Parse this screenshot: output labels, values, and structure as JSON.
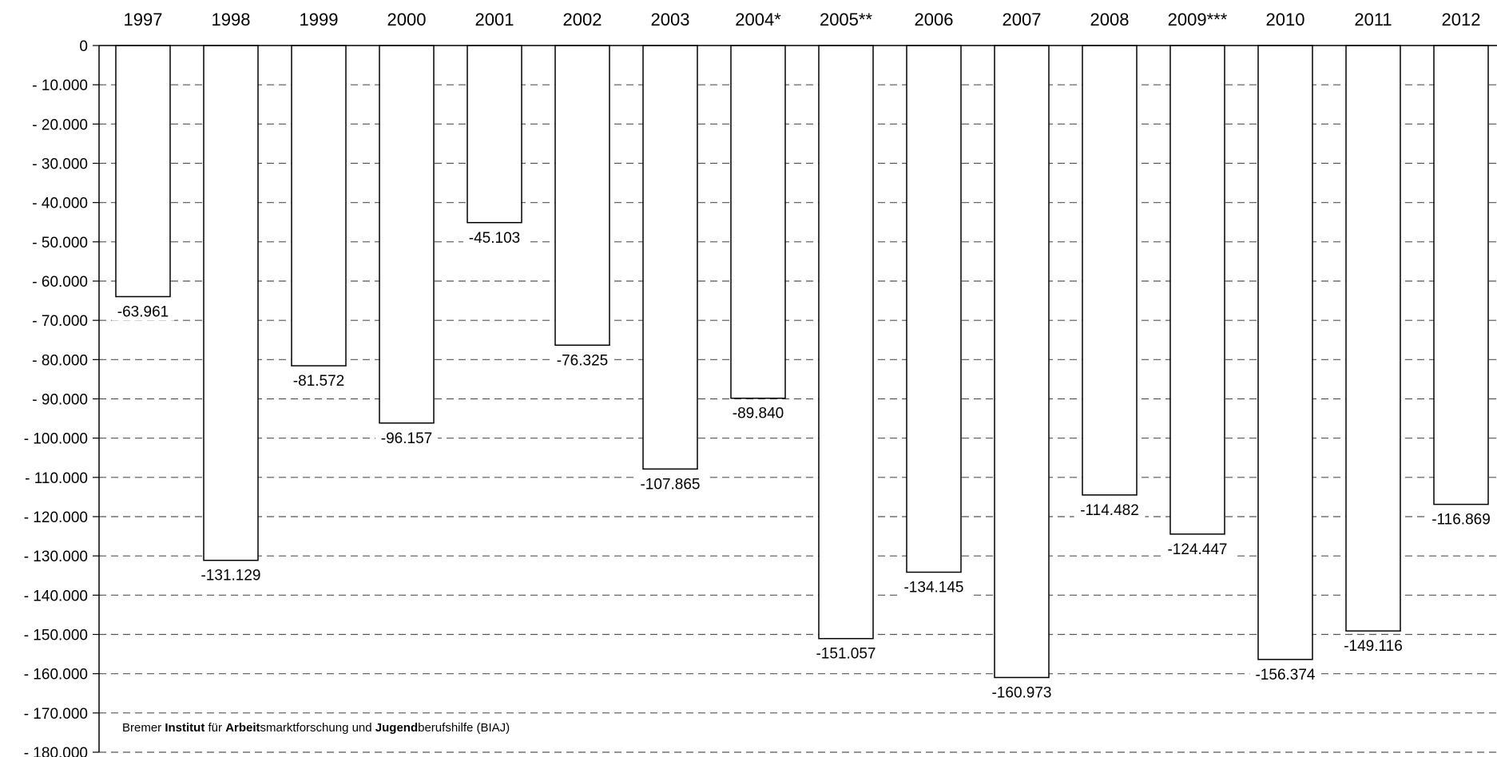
{
  "chart_data": {
    "type": "bar",
    "categories": [
      "1997",
      "1998",
      "1999",
      "2000",
      "2001",
      "2002",
      "2003",
      "2004*",
      "2005**",
      "2006",
      "2007",
      "2008",
      "2009***",
      "2010",
      "2011",
      "2012"
    ],
    "values": [
      -63961,
      -131129,
      -81572,
      -96157,
      -45103,
      -76325,
      -107865,
      -89840,
      -151057,
      -134145,
      -160973,
      -114482,
      -124447,
      -156374,
      -149116,
      -116869
    ],
    "value_labels": [
      "-63.961",
      "-131.129",
      "-81.572",
      "-96.157",
      "-45.103",
      "-76.325",
      "-107.865",
      "-89.840",
      "-151.057",
      "-134.145",
      "-160.973",
      "-114.482",
      "-124.447",
      "-156.374",
      "-149.116",
      "-116.869"
    ],
    "y_ticks": [
      0,
      -10000,
      -20000,
      -30000,
      -40000,
      -50000,
      -60000,
      -70000,
      -80000,
      -90000,
      -100000,
      -110000,
      -120000,
      -130000,
      -140000,
      -150000,
      -160000,
      -170000,
      -180000
    ],
    "y_tick_labels": [
      "0",
      "- 10.000",
      "- 20.000",
      "- 30.000",
      "- 40.000",
      "- 50.000",
      "- 60.000",
      "- 70.000",
      "- 80.000",
      "- 90.000",
      "- 100.000",
      "- 110.000",
      "- 120.000",
      "- 130.000",
      "- 140.000",
      "- 150.000",
      "- 160.000",
      "- 170.000",
      "- 180.000"
    ],
    "ylim": [
      -180000,
      0
    ],
    "category_axis_position": "top",
    "grid": "dashed horizontal",
    "bar_fill": "#ffffff",
    "bar_stroke": "#000000",
    "source_parts": [
      {
        "text": "Bremer ",
        "bold": false
      },
      {
        "text": "Institut",
        "bold": true
      },
      {
        "text": " für ",
        "bold": false
      },
      {
        "text": "Arbeit",
        "bold": true
      },
      {
        "text": "smarktforschung und ",
        "bold": false
      },
      {
        "text": "Jugend",
        "bold": true
      },
      {
        "text": "berufshilfe (BIAJ)",
        "bold": false
      }
    ]
  }
}
